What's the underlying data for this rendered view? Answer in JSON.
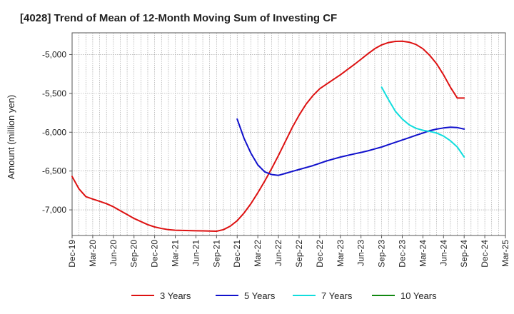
{
  "chart_data": {
    "type": "line",
    "title": "[4028]  Trend of Mean of 12-Month Moving Sum of Investing CF",
    "ylabel": "Amount (million yen)",
    "xlabel": "",
    "ylim": [
      -7330,
      -4720
    ],
    "yticks": [
      -5000,
      -5500,
      -6000,
      -6500,
      -7000
    ],
    "ytick_labels": [
      "-5,000",
      "-5,500",
      "-6,000",
      "-6,500",
      "-7,000"
    ],
    "x_start": "Dec-19",
    "x_end": "Mar-25",
    "x_tick_labels": [
      "Dec-19",
      "Mar-20",
      "Jun-20",
      "Sep-20",
      "Dec-20",
      "Mar-21",
      "Jun-21",
      "Sep-21",
      "Dec-21",
      "Mar-22",
      "Jun-22",
      "Sep-22",
      "Dec-22",
      "Mar-23",
      "Jun-23",
      "Sep-23",
      "Dec-23",
      "Mar-24",
      "Jun-24",
      "Sep-24",
      "Dec-24",
      "Mar-25"
    ],
    "grid": true,
    "legend_position": "bottom",
    "series": [
      {
        "name": "3 Years",
        "color": "#dd1111",
        "x": [
          "Dec-19",
          "Jan-20",
          "Feb-20",
          "Mar-20",
          "Apr-20",
          "May-20",
          "Jun-20",
          "Jul-20",
          "Aug-20",
          "Sep-20",
          "Oct-20",
          "Nov-20",
          "Dec-20",
          "Jan-21",
          "Feb-21",
          "Mar-21",
          "Apr-21",
          "May-21",
          "Jun-21",
          "Jul-21",
          "Aug-21",
          "Sep-21",
          "Oct-21",
          "Nov-21",
          "Dec-21",
          "Jan-22",
          "Feb-22",
          "Mar-22",
          "Apr-22",
          "May-22",
          "Jun-22",
          "Jul-22",
          "Aug-22",
          "Sep-22",
          "Oct-22",
          "Nov-22",
          "Dec-22",
          "Jan-23",
          "Feb-23",
          "Mar-23",
          "Apr-23",
          "May-23",
          "Jun-23",
          "Jul-23",
          "Aug-23",
          "Sep-23",
          "Oct-23",
          "Nov-23",
          "Dec-23",
          "Jan-24",
          "Feb-24",
          "Mar-24",
          "Apr-24",
          "May-24",
          "Jun-24",
          "Jul-24",
          "Aug-24",
          "Sep-24"
        ],
        "values": [
          -6570,
          -6730,
          -6830,
          -6860,
          -6890,
          -6920,
          -6960,
          -7010,
          -7060,
          -7110,
          -7150,
          -7190,
          -7220,
          -7240,
          -7255,
          -7262,
          -7265,
          -7267,
          -7269,
          -7270,
          -7272,
          -7275,
          -7255,
          -7210,
          -7140,
          -7040,
          -6920,
          -6780,
          -6630,
          -6470,
          -6300,
          -6120,
          -5940,
          -5780,
          -5640,
          -5530,
          -5440,
          -5380,
          -5320,
          -5260,
          -5195,
          -5130,
          -5060,
          -4990,
          -4925,
          -4875,
          -4845,
          -4830,
          -4828,
          -4840,
          -4870,
          -4925,
          -5010,
          -5120,
          -5260,
          -5420,
          -5560,
          -5560
        ]
      },
      {
        "name": "5 Years",
        "color": "#1111cc",
        "x": [
          "Dec-21",
          "Jan-22",
          "Feb-22",
          "Mar-22",
          "Apr-22",
          "May-22",
          "Jun-22",
          "Jul-22",
          "Aug-22",
          "Sep-22",
          "Oct-22",
          "Nov-22",
          "Dec-22",
          "Jan-23",
          "Feb-23",
          "Mar-23",
          "Apr-23",
          "May-23",
          "Jun-23",
          "Jul-23",
          "Aug-23",
          "Sep-23",
          "Oct-23",
          "Nov-23",
          "Dec-23",
          "Jan-24",
          "Feb-24",
          "Mar-24",
          "Apr-24",
          "May-24",
          "Jun-24",
          "Jul-24",
          "Aug-24",
          "Sep-24"
        ],
        "values": [
          -5830,
          -6080,
          -6270,
          -6420,
          -6510,
          -6545,
          -6555,
          -6530,
          -6505,
          -6480,
          -6455,
          -6430,
          -6400,
          -6370,
          -6345,
          -6320,
          -6300,
          -6280,
          -6260,
          -6240,
          -6215,
          -6190,
          -6160,
          -6130,
          -6100,
          -6070,
          -6040,
          -6010,
          -5980,
          -5960,
          -5945,
          -5935,
          -5940,
          -5960
        ]
      },
      {
        "name": "7 Years",
        "color": "#11dddd",
        "x": [
          "Sep-23",
          "Oct-23",
          "Nov-23",
          "Dec-23",
          "Jan-24",
          "Feb-24",
          "Mar-24",
          "Apr-24",
          "May-24",
          "Jun-24",
          "Jul-24",
          "Aug-24",
          "Sep-24"
        ],
        "values": [
          -5420,
          -5580,
          -5730,
          -5830,
          -5905,
          -5950,
          -5975,
          -5990,
          -6010,
          -6050,
          -6110,
          -6190,
          -6320
        ]
      },
      {
        "name": "10 Years",
        "color": "#118811",
        "x": [],
        "values": []
      }
    ]
  }
}
